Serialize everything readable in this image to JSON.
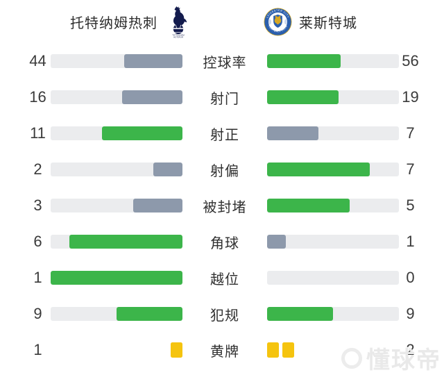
{
  "header": {
    "home": {
      "name": "托特纳姆热刺"
    },
    "away": {
      "name": "莱斯特城"
    }
  },
  "colors": {
    "green": "#3cb54a",
    "gray": "#8d99ab",
    "track": "#ebecee",
    "yellow": "#f5c40f",
    "tottenham_navy": "#131b4d",
    "leicester_blue": "#2b5fad",
    "leicester_gold": "#d7a723"
  },
  "stats": [
    {
      "label": "控球率",
      "home": 44,
      "away": 56
    },
    {
      "label": "射门",
      "home": 16,
      "away": 19
    },
    {
      "label": "射正",
      "home": 11,
      "away": 7
    },
    {
      "label": "射偏",
      "home": 2,
      "away": 7
    },
    {
      "label": "被封堵",
      "home": 3,
      "away": 5
    },
    {
      "label": "角球",
      "home": 6,
      "away": 1
    },
    {
      "label": "越位",
      "home": 1,
      "away": 0
    },
    {
      "label": "犯规",
      "home": 9,
      "away": 9
    }
  ],
  "cards": {
    "label": "黄牌",
    "home": 1,
    "away": 2
  },
  "watermark": {
    "text": "懂球帝"
  },
  "chart_data": {
    "type": "bar",
    "title": "托特纳姆热刺 vs 莱斯特城",
    "layout": "paired horizontal bars, labels centered, bars grow from center outward; higher value green, lower value gray",
    "categories": [
      "控球率",
      "射门",
      "射正",
      "射偏",
      "被封堵",
      "角球",
      "越位",
      "犯规",
      "黄牌"
    ],
    "series": [
      {
        "name": "托特纳姆热刺",
        "values": [
          44,
          16,
          11,
          2,
          3,
          6,
          1,
          9,
          1
        ]
      },
      {
        "name": "莱斯特城",
        "values": [
          56,
          19,
          7,
          7,
          5,
          1,
          0,
          9,
          2
        ]
      }
    ]
  }
}
